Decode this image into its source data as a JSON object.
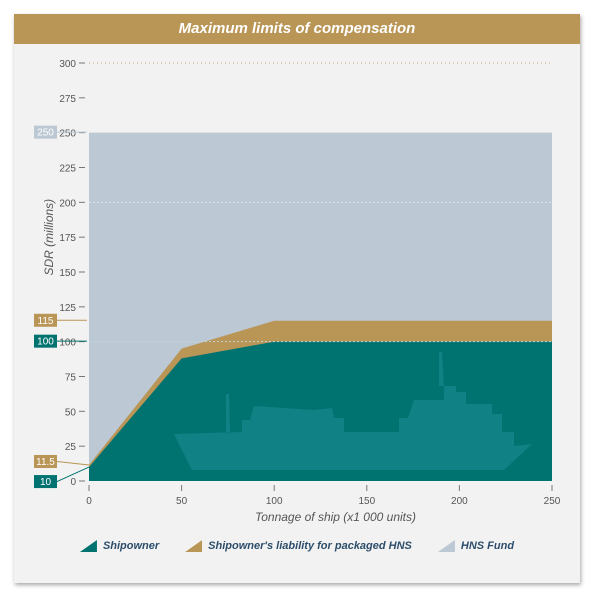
{
  "colors": {
    "banner": "#b99556",
    "shipowner": "#007371",
    "packaged": "#b99556",
    "fund": "#bcc8d3",
    "axis_text": "#555555"
  },
  "chart_data": {
    "type": "area",
    "title": "Maximum limits of compensation",
    "xlabel": "Tonnage of ship (x1 000 units)",
    "ylabel": "SDR (millions)",
    "xlim": [
      0,
      250
    ],
    "ylim": [
      0,
      300
    ],
    "x_ticks": [
      "0",
      "50",
      "100",
      "150",
      "200",
      "250"
    ],
    "y_ticks": [
      "0",
      "25",
      "50",
      "75",
      "100",
      "125",
      "150",
      "175",
      "200",
      "225",
      "250",
      "275",
      "300"
    ],
    "series": [
      {
        "name": "Shipowner",
        "color": "#007371",
        "points": [
          [
            0,
            10
          ],
          [
            50,
            88
          ],
          [
            100,
            100
          ],
          [
            250,
            100
          ]
        ]
      },
      {
        "name": "Shipowner's liability for packaged HNS",
        "color": "#b99556",
        "points": [
          [
            0,
            11.5
          ],
          [
            50,
            95
          ],
          [
            100,
            115
          ],
          [
            250,
            115
          ]
        ]
      },
      {
        "name": "HNS Fund",
        "color": "#bcc8d3",
        "points": [
          [
            0,
            250
          ],
          [
            250,
            250
          ]
        ]
      }
    ],
    "callouts": [
      {
        "label": "250",
        "y": 250,
        "color": "#bcc8d3"
      },
      {
        "label": "115",
        "y": 115,
        "color": "#b99556"
      },
      {
        "label": "100",
        "y": 100,
        "color": "#007371"
      },
      {
        "label": "11.5",
        "y": 11.5,
        "color": "#b99556"
      },
      {
        "label": "10",
        "y": 10,
        "color": "#007371"
      }
    ],
    "legend_position": "bottom"
  }
}
